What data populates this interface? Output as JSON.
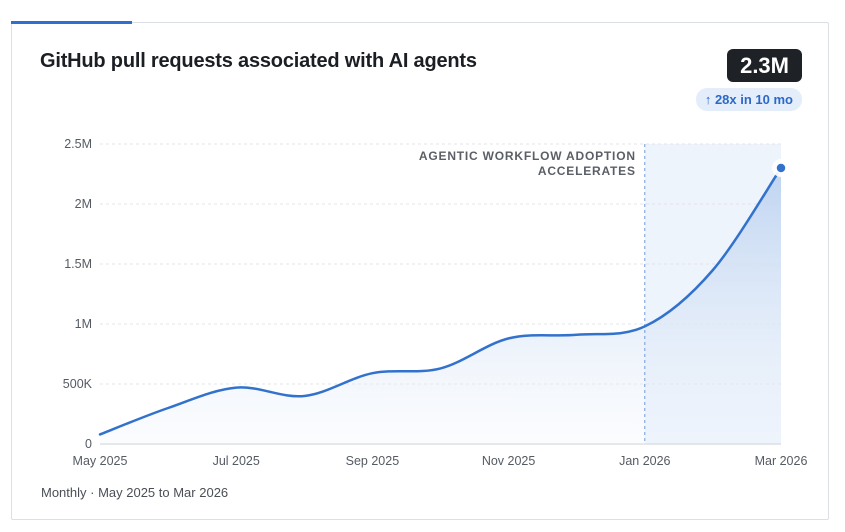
{
  "header": {
    "title": "GitHub pull requests associated with AI agents",
    "big_value": "2.3M",
    "change_badge": "↑ 28x in 10 mo"
  },
  "footnote": "Monthly · May 2025 to Mar 2026",
  "annotation": {
    "line1": "AGENTIC WORKFLOW ADOPTION",
    "line2": "ACCELERATES",
    "at": "Jan 2026"
  },
  "colors": {
    "line": "#3272cc",
    "accent": "#2f6fd0",
    "badge_bg": "#1e2126",
    "shade": "#e8f0fb"
  },
  "chart_data": {
    "type": "line",
    "title": "GitHub pull requests associated with AI agents",
    "x": [
      "May 2025",
      "Jun 2025",
      "Jul 2025",
      "Aug 2025",
      "Sep 2025",
      "Oct 2025",
      "Nov 2025",
      "Dec 2025",
      "Jan 2026",
      "Feb 2026",
      "Mar 2026"
    ],
    "x_tick_labels": [
      "May 2025",
      "Jul 2025",
      "Sep 2025",
      "Nov 2025",
      "Jan 2026",
      "Mar 2026"
    ],
    "y_tick_labels": [
      "0",
      "500K",
      "1M",
      "1.5M",
      "2M",
      "2.5M"
    ],
    "y_ticks": [
      0,
      500000,
      1000000,
      1500000,
      2000000,
      2500000
    ],
    "series": [
      {
        "values": [
          80000,
          300000,
          470000,
          400000,
          590000,
          630000,
          880000,
          910000,
          980000,
          1450000,
          2300000
        ]
      }
    ],
    "ylim": [
      0,
      2500000
    ],
    "grid": true,
    "legend": "none",
    "shaded_region": {
      "from": "Jan 2026",
      "to": "Mar 2026"
    }
  }
}
